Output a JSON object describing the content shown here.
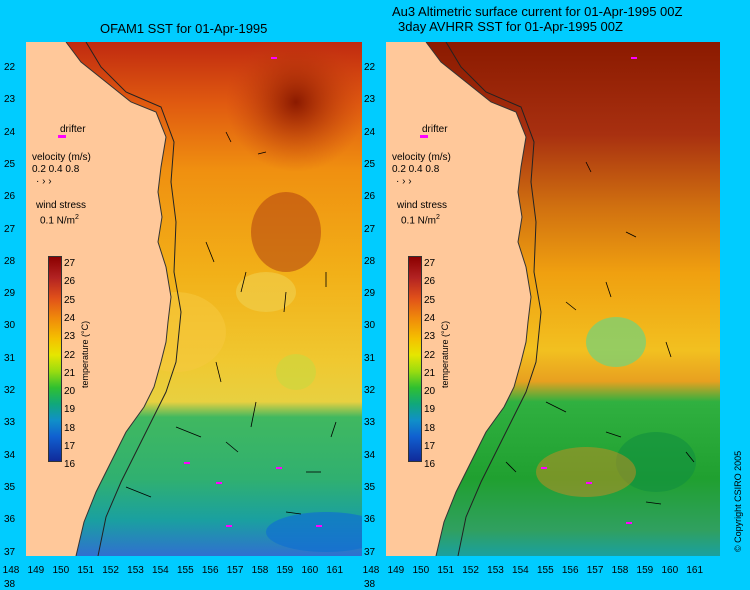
{
  "left_panel": {
    "title": "OFAM1 SST for 01-Apr-1995"
  },
  "right_panel": {
    "title_line1": "Au3 Altimetric surface current for 01-Apr-1995 00Z",
    "title_line2": "3day AVHRR SST for 01-Apr-1995 00Z"
  },
  "latitude_labels": [
    "22",
    "23",
    "24",
    "25",
    "26",
    "27",
    "28",
    "29",
    "30",
    "31",
    "32",
    "33",
    "34",
    "35",
    "36",
    "37",
    "38"
  ],
  "longitude_labels": [
    "148",
    "149",
    "150",
    "151",
    "152",
    "153",
    "154",
    "155",
    "156",
    "157",
    "158",
    "159",
    "160",
    "161"
  ],
  "legend": {
    "drifter": "drifter",
    "velocity_label": "velocity (m/s)",
    "velocity_values": "0.2 0.4 0.8",
    "wind_label": "wind stress",
    "wind_value": "0.1 N/m",
    "wind_unit_sup": "2"
  },
  "colorbar": {
    "title": "temperature (°C)",
    "ticks": [
      "27",
      "26",
      "25",
      "24",
      "23",
      "22",
      "21",
      "20",
      "19",
      "18",
      "17",
      "16"
    ],
    "range": [
      16,
      27
    ]
  },
  "copyright": "© Copyright CSIRO 2005",
  "colors": {
    "background": "#00ccff",
    "land": "#ffc89a",
    "hot": "#8b0000",
    "warm": "#f08a0a",
    "mild": "#f5c000",
    "cool": "#30c030",
    "cold": "#1060d0",
    "drifter_marker": "#ff00ff"
  }
}
